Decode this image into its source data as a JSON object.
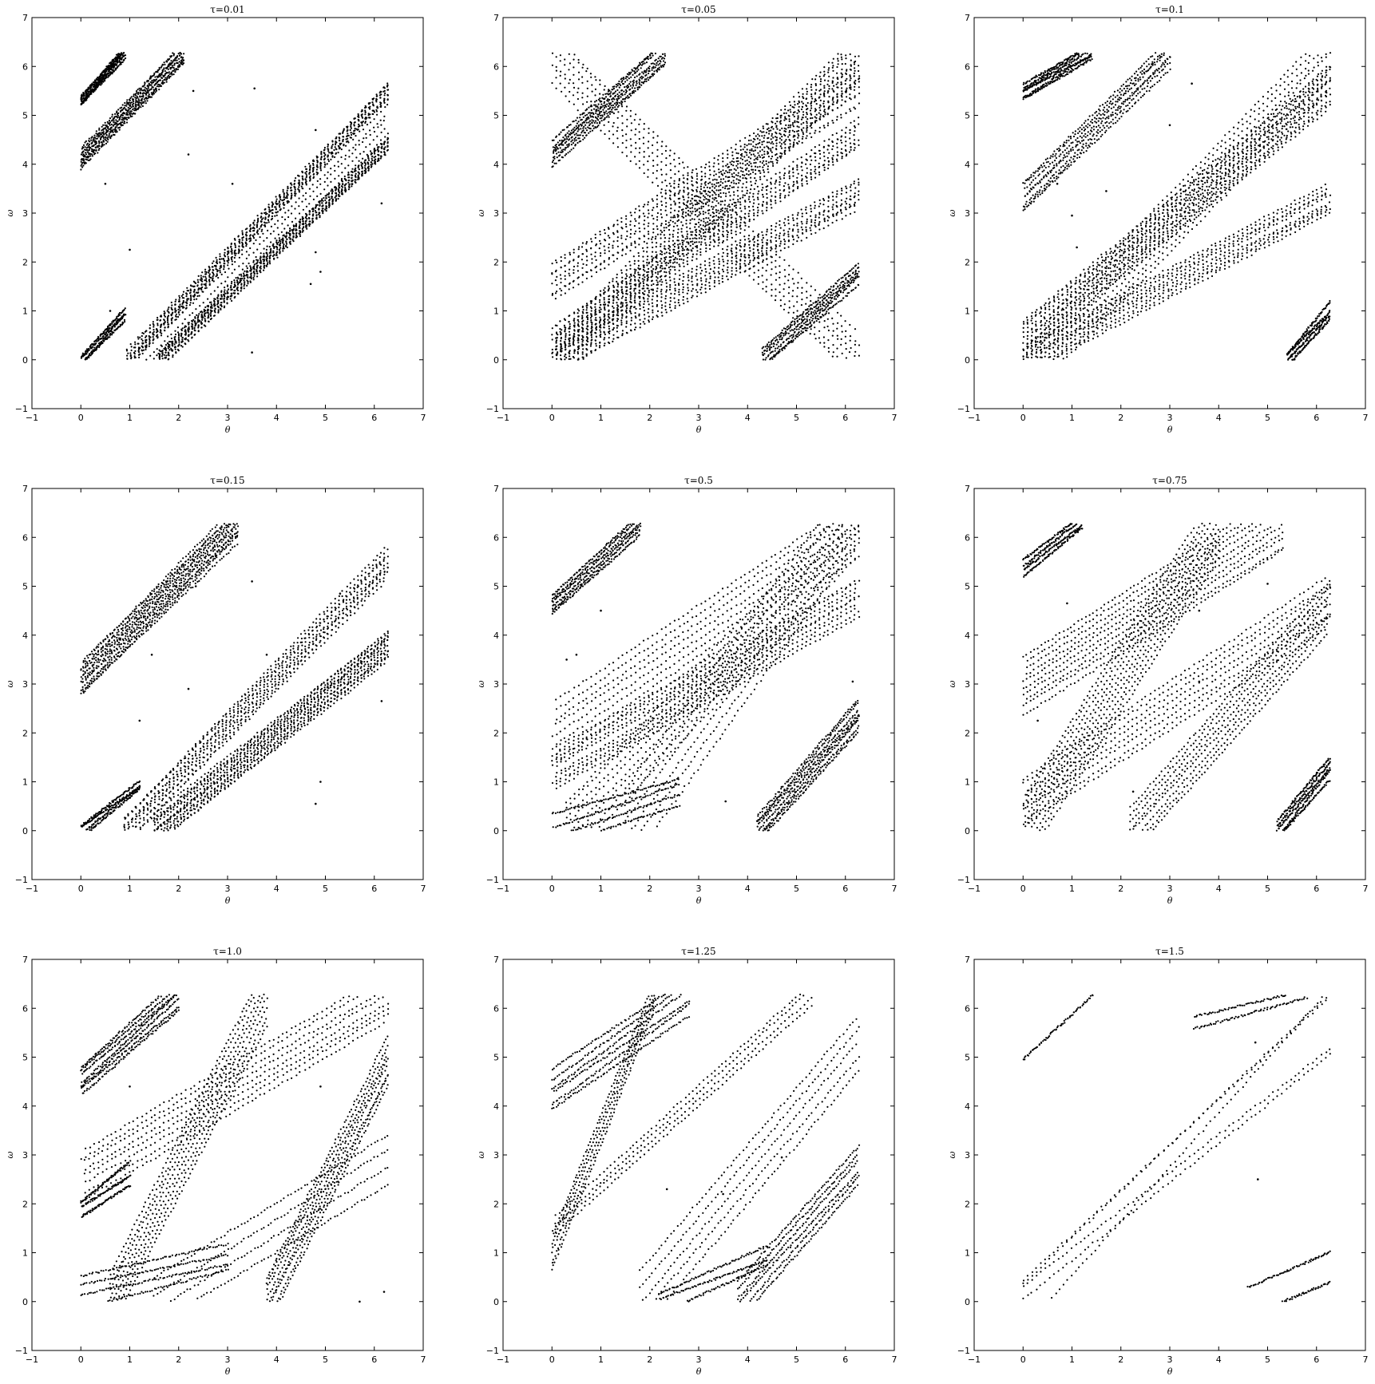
{
  "figure": {
    "xticks": [
      -1,
      0,
      1,
      2,
      3,
      4,
      5,
      6,
      7
    ],
    "yticks": [
      -1,
      0,
      1,
      2,
      3,
      4,
      5,
      6,
      7
    ],
    "xlabel": "θ",
    "ylabel": "ω"
  },
  "chart_data": [
    {
      "type": "scatter",
      "title": "τ=0.01",
      "xlabel": "θ",
      "ylabel": "ω",
      "xlim": [
        -1,
        7
      ],
      "ylim": [
        -1,
        7
      ],
      "grid": false,
      "domain": [
        0,
        6.283
      ],
      "bands": [
        {
          "x": [
            0.95,
            6.28
          ],
          "y": [
            0.0,
            5.5
          ],
          "n": 12,
          "spread": 0.18
        },
        {
          "x": [
            1.6,
            6.28
          ],
          "y": [
            0.0,
            4.4
          ],
          "n": 14,
          "spread": 0.16
        },
        {
          "x": [
            1.2,
            6.28
          ],
          "y": [
            0.0,
            5.0
          ],
          "n": 6,
          "spread": 0.4
        },
        {
          "x": [
            0.0,
            2.1
          ],
          "y": [
            4.1,
            6.28
          ],
          "n": 10,
          "spread": 0.2
        },
        {
          "x": [
            0.0,
            0.9
          ],
          "y": [
            5.3,
            6.28
          ],
          "n": 6,
          "spread": 0.1
        },
        {
          "x": [
            0.0,
            0.9
          ],
          "y": [
            0.0,
            0.9
          ],
          "n": 4,
          "spread": 0.1
        }
      ],
      "isolated": [
        [
          0.5,
          3.6
        ],
        [
          1.0,
          2.25
        ],
        [
          0.6,
          1.0
        ],
        [
          2.2,
          4.2
        ],
        [
          2.3,
          5.5
        ],
        [
          3.1,
          3.6
        ],
        [
          3.5,
          0.15
        ],
        [
          3.55,
          5.55
        ],
        [
          4.8,
          2.2
        ],
        [
          4.9,
          1.8
        ],
        [
          4.7,
          1.55
        ],
        [
          6.15,
          3.2
        ],
        [
          4.8,
          4.7
        ]
      ]
    },
    {
      "type": "scatter",
      "title": "τ=0.05",
      "xlabel": "θ",
      "ylabel": "ω",
      "xlim": [
        -1,
        7
      ],
      "ylim": [
        -1,
        7
      ],
      "grid": false,
      "domain": [
        0,
        6.283
      ],
      "bands": [
        {
          "x": [
            0.0,
            6.28
          ],
          "y": [
            0.4,
            4.6
          ],
          "n": 10,
          "spread": 0.3
        },
        {
          "x": [
            0.0,
            6.28
          ],
          "y": [
            1.6,
            5.6
          ],
          "n": 10,
          "spread": 0.4
        },
        {
          "x": [
            0.1,
            6.28
          ],
          "y": [
            0.0,
            6.2
          ],
          "n": 14,
          "spread": 0.5
        },
        {
          "x": [
            0.0,
            6.28
          ],
          "y": [
            6.2,
            0.0
          ],
          "n": 8,
          "spread": 0.5
        },
        {
          "x": [
            0.0,
            6.28
          ],
          "y": [
            0.0,
            3.4
          ],
          "n": 10,
          "spread": 0.3
        },
        {
          "x": [
            0.0,
            2.3
          ],
          "y": [
            4.2,
            6.28
          ],
          "n": 8,
          "spread": 0.25
        },
        {
          "x": [
            4.3,
            6.28
          ],
          "y": [
            0.0,
            1.8
          ],
          "n": 6,
          "spread": 0.2
        }
      ],
      "isolated": []
    },
    {
      "type": "scatter",
      "title": "τ=0.1",
      "xlabel": "θ",
      "ylabel": "ω",
      "xlim": [
        -1,
        7
      ],
      "ylim": [
        -1,
        7
      ],
      "grid": false,
      "domain": [
        0,
        6.283
      ],
      "bands": [
        {
          "x": [
            0.0,
            6.28
          ],
          "y": [
            0.4,
            5.6
          ],
          "n": 14,
          "spread": 0.4
        },
        {
          "x": [
            0.0,
            6.28
          ],
          "y": [
            0.0,
            3.3
          ],
          "n": 10,
          "spread": 0.3
        },
        {
          "x": [
            0.3,
            6.28
          ],
          "y": [
            0.0,
            6.2
          ],
          "n": 10,
          "spread": 0.6
        },
        {
          "x": [
            0.0,
            3.0
          ],
          "y": [
            3.3,
            6.28
          ],
          "n": 8,
          "spread": 0.3
        },
        {
          "x": [
            0.0,
            1.4
          ],
          "y": [
            5.5,
            6.28
          ],
          "n": 6,
          "spread": 0.15
        },
        {
          "x": [
            5.4,
            6.28
          ],
          "y": [
            0.0,
            1.0
          ],
          "n": 4,
          "spread": 0.15
        }
      ],
      "isolated": [
        [
          1.0,
          2.95
        ],
        [
          1.7,
          3.45
        ],
        [
          3.45,
          5.65
        ],
        [
          3.0,
          4.8
        ],
        [
          0.7,
          3.6
        ],
        [
          1.1,
          2.3
        ]
      ]
    },
    {
      "type": "scatter",
      "title": "τ=0.15",
      "xlabel": "θ",
      "ylabel": "ω",
      "xlim": [
        -1,
        7
      ],
      "ylim": [
        -1,
        7
      ],
      "grid": false,
      "domain": [
        0,
        6.283
      ],
      "bands": [
        {
          "x": [
            0.9,
            6.28
          ],
          "y": [
            0.0,
            5.5
          ],
          "n": 12,
          "spread": 0.3
        },
        {
          "x": [
            1.5,
            6.28
          ],
          "y": [
            0.0,
            3.8
          ],
          "n": 16,
          "spread": 0.3
        },
        {
          "x": [
            0.0,
            3.2
          ],
          "y": [
            3.1,
            6.28
          ],
          "n": 14,
          "spread": 0.35
        },
        {
          "x": [
            0.0,
            1.2
          ],
          "y": [
            0.0,
            0.9
          ],
          "n": 4,
          "spread": 0.1
        }
      ],
      "isolated": [
        [
          1.45,
          3.6
        ],
        [
          1.2,
          2.25
        ],
        [
          2.2,
          2.9
        ],
        [
          2.35,
          5.0
        ],
        [
          3.5,
          5.1
        ],
        [
          3.8,
          3.6
        ],
        [
          4.9,
          1.0
        ],
        [
          4.8,
          0.55
        ],
        [
          5.3,
          4.85
        ],
        [
          6.15,
          2.65
        ]
      ]
    },
    {
      "type": "scatter",
      "title": "τ=0.5",
      "xlabel": "θ",
      "ylabel": "ω",
      "xlim": [
        -1,
        7
      ],
      "ylim": [
        -1,
        7
      ],
      "grid": false,
      "domain": [
        0,
        6.283
      ],
      "bands": [
        {
          "x": [
            0.0,
            6.28
          ],
          "y": [
            1.2,
            4.8
          ],
          "n": 10,
          "spread": 0.4
        },
        {
          "x": [
            0.0,
            6.28
          ],
          "y": [
            2.0,
            6.2
          ],
          "n": 8,
          "spread": 0.6
        },
        {
          "x": [
            0.3,
            6.28
          ],
          "y": [
            0.0,
            6.2
          ],
          "n": 8,
          "spread": 0.6
        },
        {
          "x": [
            1.5,
            6.0
          ],
          "y": [
            0.0,
            6.3
          ],
          "n": 6,
          "spread": 0.8
        },
        {
          "x": [
            0.0,
            1.8
          ],
          "y": [
            4.6,
            6.28
          ],
          "n": 6,
          "spread": 0.2
        },
        {
          "x": [
            4.2,
            6.28
          ],
          "y": [
            0.0,
            2.4
          ],
          "n": 8,
          "spread": 0.3
        },
        {
          "x": [
            0.0,
            2.6
          ],
          "y": [
            0.0,
            0.8
          ],
          "n": 4,
          "spread": 0.3
        }
      ],
      "isolated": [
        [
          1.0,
          4.5
        ],
        [
          0.3,
          3.5
        ],
        [
          0.5,
          3.6
        ],
        [
          3.55,
          0.6
        ],
        [
          6.15,
          3.05
        ]
      ]
    },
    {
      "type": "scatter",
      "title": "τ=0.75",
      "xlabel": "θ",
      "ylabel": "ω",
      "xlim": [
        -1,
        7
      ],
      "ylim": [
        -1,
        7
      ],
      "grid": false,
      "domain": [
        0,
        6.283
      ],
      "bands": [
        {
          "x": [
            0.0,
            5.3
          ],
          "y": [
            3.0,
            6.28
          ],
          "n": 10,
          "spread": 0.6
        },
        {
          "x": [
            0.0,
            6.28
          ],
          "y": [
            0.6,
            4.7
          ],
          "n": 8,
          "spread": 0.5
        },
        {
          "x": [
            0.0,
            4.0
          ],
          "y": [
            0.0,
            6.28
          ],
          "n": 10,
          "spread": 0.7
        },
        {
          "x": [
            2.2,
            6.28
          ],
          "y": [
            0.0,
            4.6
          ],
          "n": 8,
          "spread": 0.5
        },
        {
          "x": [
            0.0,
            1.2
          ],
          "y": [
            5.4,
            6.28
          ],
          "n": 4,
          "spread": 0.15
        },
        {
          "x": [
            5.2,
            6.28
          ],
          "y": [
            0.0,
            1.3
          ],
          "n": 5,
          "spread": 0.2
        }
      ],
      "isolated": [
        [
          0.9,
          4.65
        ],
        [
          3.6,
          4.5
        ],
        [
          5.0,
          5.05
        ],
        [
          0.3,
          2.25
        ],
        [
          2.25,
          0.8
        ],
        [
          3.6,
          3.05
        ]
      ]
    },
    {
      "type": "scatter",
      "title": "τ=1.0",
      "xlabel": "θ",
      "ylabel": "ω",
      "xlim": [
        -1,
        7
      ],
      "ylim": [
        -1,
        7
      ],
      "grid": false,
      "domain": [
        0,
        6.283
      ],
      "bands": [
        {
          "x": [
            0.0,
            6.28
          ],
          "y": [
            2.6,
            6.2
          ],
          "n": 8,
          "spread": 0.5
        },
        {
          "x": [
            0.6,
            3.8
          ],
          "y": [
            0.0,
            6.28
          ],
          "n": 8,
          "spread": 0.6
        },
        {
          "x": [
            3.8,
            6.28
          ],
          "y": [
            0.0,
            4.9
          ],
          "n": 8,
          "spread": 0.5
        },
        {
          "x": [
            0.0,
            2.0
          ],
          "y": [
            4.5,
            6.28
          ],
          "n": 7,
          "spread": 0.3
        },
        {
          "x": [
            0.0,
            3.0
          ],
          "y": [
            0.2,
            0.9
          ],
          "n": 4,
          "spread": 0.3
        },
        {
          "x": [
            0.0,
            1.0
          ],
          "y": [
            1.9,
            2.6
          ],
          "n": 3,
          "spread": 0.2
        },
        {
          "x": [
            1.5,
            6.28
          ],
          "y": [
            0.0,
            2.9
          ],
          "n": 4,
          "spread": 0.5
        }
      ],
      "isolated": [
        [
          5.7,
          0.0
        ],
        [
          6.2,
          0.2
        ],
        [
          4.9,
          4.4
        ],
        [
          1.0,
          4.4
        ]
      ]
    },
    {
      "type": "scatter",
      "title": "τ=1.25",
      "xlabel": "θ",
      "ylabel": "ω",
      "xlim": [
        -1,
        7
      ],
      "ylim": [
        -1,
        7
      ],
      "grid": false,
      "domain": [
        0,
        6.283
      ],
      "bands": [
        {
          "x": [
            0.0,
            2.8
          ],
          "y": [
            4.3,
            6.28
          ],
          "n": 6,
          "spread": 0.4
        },
        {
          "x": [
            0.0,
            2.1
          ],
          "y": [
            1.0,
            6.28
          ],
          "n": 5,
          "spread": 0.3
        },
        {
          "x": [
            0.0,
            5.3
          ],
          "y": [
            1.5,
            6.3
          ],
          "n": 4,
          "spread": 0.2
        },
        {
          "x": [
            1.8,
            6.28
          ],
          "y": [
            0.0,
            5.3
          ],
          "n": 5,
          "spread": 0.6
        },
        {
          "x": [
            2.2,
            4.4
          ],
          "y": [
            0.0,
            0.9
          ],
          "n": 3,
          "spread": 0.2
        },
        {
          "x": [
            3.8,
            6.28
          ],
          "y": [
            0.0,
            2.8
          ],
          "n": 6,
          "spread": 0.4
        }
      ],
      "isolated": [
        [
          2.35,
          2.3
        ],
        [
          4.7,
          2.95
        ],
        [
          3.5,
          2.2
        ]
      ]
    },
    {
      "type": "scatter",
      "title": "τ=1.5",
      "xlabel": "θ",
      "ylabel": "ω",
      "xlim": [
        -1,
        7
      ],
      "ylim": [
        -1,
        7
      ],
      "grid": false,
      "domain": [
        0,
        6.283
      ],
      "bands": [
        {
          "x": [
            0.0,
            6.28
          ],
          "y": [
            0.4,
            6.28
          ],
          "n": 2,
          "spread": 0.0
        },
        {
          "x": [
            0.0,
            6.28
          ],
          "y": [
            0.2,
            5.1
          ],
          "n": 2,
          "spread": 0.1
        },
        {
          "x": [
            0.5,
            6.2
          ],
          "y": [
            0.0,
            6.28
          ],
          "n": 1,
          "spread": 0.0
        },
        {
          "x": [
            0.0,
            1.5
          ],
          "y": [
            5.0,
            6.28
          ],
          "n": 1,
          "spread": 0.0
        },
        {
          "x": [
            3.5,
            5.8
          ],
          "y": [
            5.7,
            6.3
          ],
          "n": 2,
          "spread": 0.1
        },
        {
          "x": [
            4.6,
            6.28
          ],
          "y": [
            0.0,
            0.7
          ],
          "n": 2,
          "spread": 0.3
        }
      ],
      "isolated": [
        [
          4.8,
          2.5
        ],
        [
          4.75,
          5.3
        ]
      ]
    }
  ]
}
